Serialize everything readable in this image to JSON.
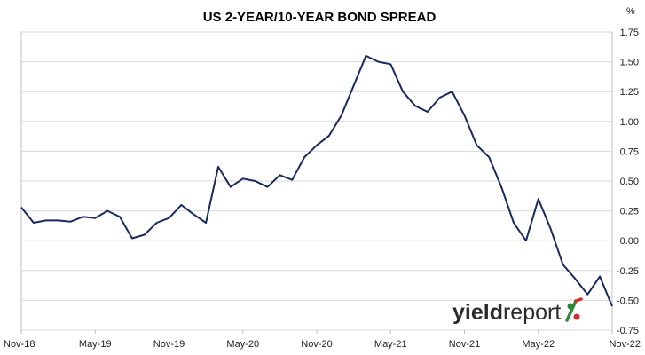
{
  "chart_data": {
    "type": "line",
    "title": "US 2-YEAR/10-YEAR BOND SPREAD",
    "y_unit": "%",
    "xlabel": "",
    "ylabel": "",
    "x_ticks": [
      "Nov-18",
      "May-19",
      "Nov-19",
      "May-20",
      "Nov-20",
      "May-21",
      "Nov-21",
      "May-22",
      "Nov-22"
    ],
    "y_ticks": [
      "1.75",
      "1.50",
      "1.25",
      "1.00",
      "0.75",
      "0.50",
      "0.25",
      "0.00",
      "-0.25",
      "-0.50",
      "-0.75"
    ],
    "ylim": [
      -0.75,
      1.75
    ],
    "xlim": [
      "2018-11",
      "2022-11"
    ],
    "grid": "horizontal",
    "y_axis_side": "right",
    "series": [
      {
        "color": "#1b2a5e",
        "x": [
          "2018-11",
          "2018-12",
          "2019-01",
          "2019-02",
          "2019-03",
          "2019-04",
          "2019-05",
          "2019-06",
          "2019-07",
          "2019-08",
          "2019-09",
          "2019-10",
          "2019-11",
          "2019-12",
          "2020-01",
          "2020-02",
          "2020-03",
          "2020-04",
          "2020-05",
          "2020-06",
          "2020-07",
          "2020-08",
          "2020-09",
          "2020-10",
          "2020-11",
          "2020-12",
          "2021-01",
          "2021-02",
          "2021-03",
          "2021-04",
          "2021-05",
          "2021-06",
          "2021-07",
          "2021-08",
          "2021-09",
          "2021-10",
          "2021-11",
          "2021-12",
          "2022-01",
          "2022-02",
          "2022-03",
          "2022-04",
          "2022-05",
          "2022-06",
          "2022-07",
          "2022-08",
          "2022-09",
          "2022-10",
          "2022-11"
        ],
        "values": [
          0.28,
          0.15,
          0.17,
          0.17,
          0.16,
          0.2,
          0.19,
          0.25,
          0.2,
          0.02,
          0.05,
          0.15,
          0.19,
          0.3,
          0.22,
          0.15,
          0.62,
          0.45,
          0.52,
          0.5,
          0.45,
          0.55,
          0.51,
          0.7,
          0.8,
          0.88,
          1.05,
          1.3,
          1.55,
          1.5,
          1.48,
          1.25,
          1.13,
          1.08,
          1.2,
          1.25,
          1.05,
          0.8,
          0.7,
          0.45,
          0.15,
          0.0,
          0.35,
          0.1,
          -0.2,
          -0.32,
          -0.45,
          -0.3,
          -0.55
        ]
      }
    ]
  },
  "logo": {
    "text_bold": "yield",
    "text_light": "report",
    "symbol": "%",
    "color_text": "#2b2b2b",
    "color_green": "#2e8b3a",
    "color_red": "#d32f2f"
  }
}
